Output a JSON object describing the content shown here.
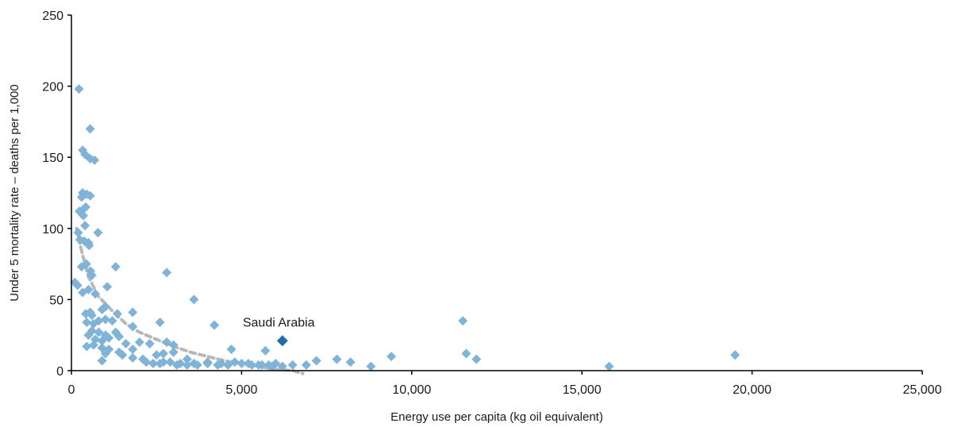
{
  "chart_data": {
    "type": "scatter",
    "xlabel": "Energy use per capita (kg oil equivalent)",
    "ylabel": "Under 5 mortality rate – deaths per 1,000",
    "xlim": [
      0,
      25000
    ],
    "ylim": [
      0,
      250
    ],
    "xticks": [
      0,
      5000,
      10000,
      15000,
      20000,
      25000
    ],
    "xtick_labels": [
      "0",
      "5,000",
      "10,000",
      "15,000",
      "20,000",
      "25,000"
    ],
    "yticks": [
      0,
      50,
      100,
      150,
      200,
      250
    ],
    "ytick_labels": [
      "0",
      "50",
      "100",
      "150",
      "200",
      "250"
    ],
    "grid": false,
    "colors": {
      "points": "#7fb3d8",
      "highlight": "#1f6ea8",
      "trend": "#b8b8b8",
      "axis": "#000000"
    },
    "series": [
      {
        "marker": "diamond",
        "points": [
          [
            220,
            198
          ],
          [
            550,
            170
          ],
          [
            330,
            155
          ],
          [
            400,
            152
          ],
          [
            550,
            149
          ],
          [
            680,
            148
          ],
          [
            330,
            125
          ],
          [
            450,
            124
          ],
          [
            550,
            123
          ],
          [
            300,
            122
          ],
          [
            420,
            115
          ],
          [
            330,
            113
          ],
          [
            230,
            112
          ],
          [
            350,
            109
          ],
          [
            400,
            102
          ],
          [
            780,
            97
          ],
          [
            200,
            97
          ],
          [
            250,
            92
          ],
          [
            380,
            91
          ],
          [
            500,
            90
          ],
          [
            520,
            88
          ],
          [
            440,
            75
          ],
          [
            300,
            73
          ],
          [
            560,
            70
          ],
          [
            600,
            67
          ],
          [
            1300,
            73
          ],
          [
            2800,
            69
          ],
          [
            100,
            62
          ],
          [
            180,
            60
          ],
          [
            1050,
            59
          ],
          [
            330,
            55
          ],
          [
            500,
            57
          ],
          [
            700,
            54
          ],
          [
            3600,
            50
          ],
          [
            1000,
            45
          ],
          [
            550,
            41
          ],
          [
            420,
            40
          ],
          [
            600,
            39
          ],
          [
            900,
            43
          ],
          [
            1350,
            40
          ],
          [
            1800,
            41
          ],
          [
            2600,
            34
          ],
          [
            4200,
            32
          ],
          [
            450,
            34
          ],
          [
            650,
            33
          ],
          [
            800,
            35
          ],
          [
            1000,
            36
          ],
          [
            1200,
            35
          ],
          [
            1800,
            31
          ],
          [
            600,
            28
          ],
          [
            800,
            27
          ],
          [
            1000,
            25
          ],
          [
            1300,
            27
          ],
          [
            500,
            25
          ],
          [
            700,
            22
          ],
          [
            900,
            21
          ],
          [
            1100,
            23
          ],
          [
            1400,
            24
          ],
          [
            1600,
            19
          ],
          [
            2000,
            20
          ],
          [
            450,
            17
          ],
          [
            650,
            18
          ],
          [
            900,
            16
          ],
          [
            1100,
            15
          ],
          [
            1400,
            13
          ],
          [
            1800,
            15
          ],
          [
            2300,
            19
          ],
          [
            2800,
            20
          ],
          [
            3000,
            18
          ],
          [
            4700,
            15
          ],
          [
            5700,
            14
          ],
          [
            1000,
            12
          ],
          [
            1500,
            11
          ],
          [
            1800,
            9
          ],
          [
            2100,
            8
          ],
          [
            2500,
            11
          ],
          [
            2700,
            12
          ],
          [
            3000,
            13
          ],
          [
            3400,
            8
          ],
          [
            900,
            7
          ],
          [
            2200,
            6
          ],
          [
            2600,
            5
          ],
          [
            2900,
            6
          ],
          [
            3200,
            5
          ],
          [
            3600,
            5
          ],
          [
            4000,
            6
          ],
          [
            4400,
            5
          ],
          [
            4800,
            6
          ],
          [
            5200,
            5
          ],
          [
            5500,
            4
          ],
          [
            5800,
            4
          ],
          [
            6000,
            5
          ],
          [
            2400,
            5
          ],
          [
            2700,
            6
          ],
          [
            3100,
            4
          ],
          [
            3400,
            4
          ],
          [
            3700,
            4
          ],
          [
            4000,
            5
          ],
          [
            4300,
            4
          ],
          [
            4600,
            4
          ],
          [
            5000,
            5
          ],
          [
            5300,
            4
          ],
          [
            5600,
            4
          ],
          [
            5900,
            3
          ],
          [
            6200,
            3
          ],
          [
            6500,
            4
          ],
          [
            6900,
            4
          ],
          [
            7200,
            7
          ],
          [
            7800,
            8
          ],
          [
            8200,
            6
          ],
          [
            8800,
            3
          ],
          [
            9400,
            10
          ],
          [
            11500,
            35
          ],
          [
            11600,
            12
          ],
          [
            11900,
            8
          ],
          [
            15800,
            3
          ],
          [
            19500,
            11
          ]
        ]
      }
    ],
    "highlight": {
      "label": "Saudi Arabia",
      "x": 6200,
      "y": 21
    },
    "trendline": {
      "style": "dashed",
      "points": [
        [
          150,
          100
        ],
        [
          300,
          84
        ],
        [
          500,
          66
        ],
        [
          800,
          52
        ],
        [
          1200,
          42
        ],
        [
          1600,
          33
        ],
        [
          2000,
          27
        ],
        [
          2500,
          22
        ],
        [
          3000,
          17
        ],
        [
          3500,
          13
        ],
        [
          4000,
          10
        ],
        [
          4500,
          7
        ],
        [
          5000,
          5
        ],
        [
          5500,
          3
        ],
        [
          6000,
          1
        ],
        [
          6500,
          0
        ],
        [
          6800,
          -2
        ]
      ]
    }
  }
}
